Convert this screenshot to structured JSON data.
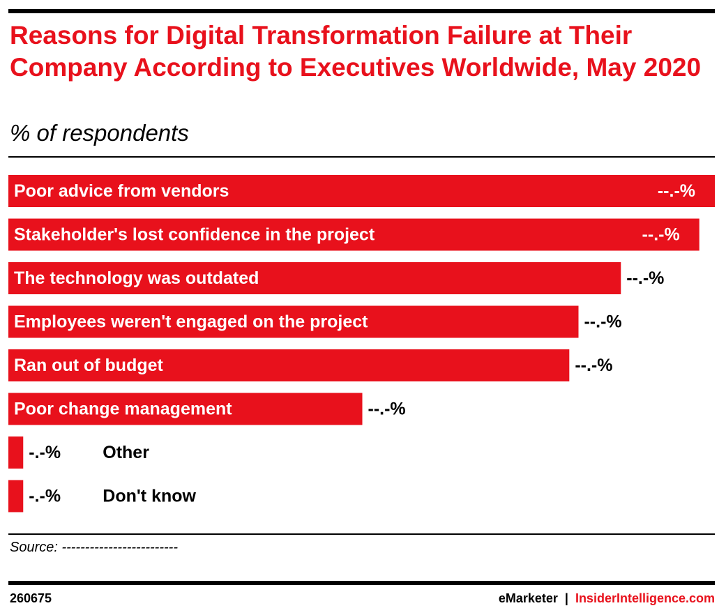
{
  "header": {
    "title": "Reasons for Digital Transformation Failure at Their Company According to Executives Worldwide, May 2020",
    "subtitle": "% of respondents"
  },
  "chart_data": {
    "type": "bar",
    "orientation": "horizontal",
    "title": "Reasons for Digital Transformation Failure at Their Company According to Executives Worldwide, May 2020",
    "subtitle": "% of respondents",
    "categories": [
      "Poor advice from vendors",
      "Stakeholder's lost confidence in the project",
      "The technology was outdated",
      "Employees weren't engaged on the project",
      "Ran out of budget",
      "Poor change management",
      "Other",
      "Don't know"
    ],
    "values": [
      100,
      97.8,
      86.7,
      80.7,
      79.4,
      50.1,
      2.1,
      2.1
    ],
    "value_labels": [
      "--.-%",
      "--.-%",
      "--.-%",
      "--.-%",
      "--.-%",
      "--.-%",
      "-.-%",
      "-.-%"
    ],
    "xlim": [
      0,
      100
    ],
    "grid": false,
    "legend": false,
    "bar_color": "#e8111c"
  },
  "footer": {
    "source": "Source: -------------------------",
    "chart_id": "260675",
    "brand_left": "eMarketer",
    "separator": "|",
    "brand_right": "InsiderIntelligence.com"
  }
}
